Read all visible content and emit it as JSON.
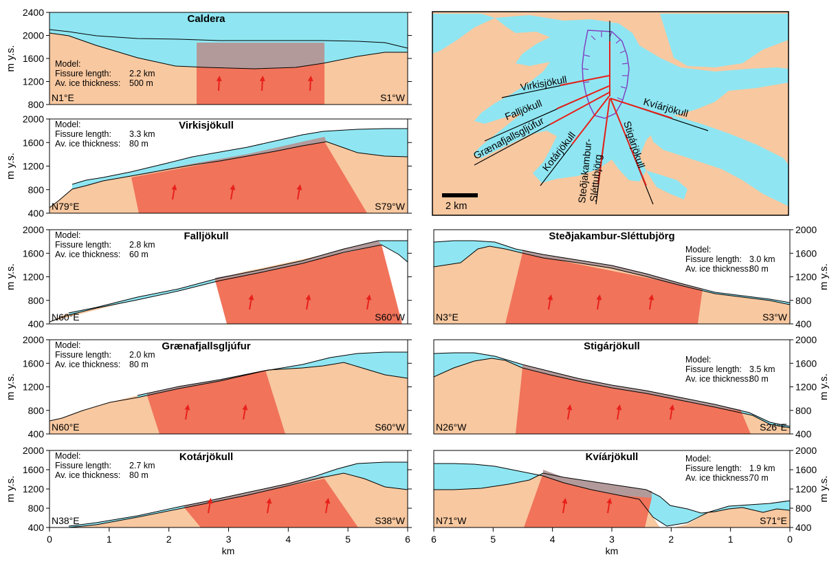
{
  "colors": {
    "ice": "#8FE6F2",
    "rock": "#F8C8A0",
    "intrusion": "#F0735A",
    "contact": "#B39A9A",
    "arrow": "#E8201A",
    "fissure_line": "#E8201A",
    "caldera_outline": "#8040C0"
  },
  "axes": {
    "y_label": "m y.s.",
    "x_label": "km",
    "x_ticks_left": [
      "0",
      "1",
      "2",
      "3",
      "4",
      "5",
      "6"
    ],
    "x_ticks_right": [
      "6",
      "5",
      "4",
      "3",
      "2",
      "1",
      "0"
    ]
  },
  "model": {
    "heading": "Model:",
    "fissure_label": "Fissure length:",
    "ice_label": "Av. ice thickness:"
  },
  "panels": [
    {
      "id": "caldera",
      "title": "Caldera",
      "left": "N1°E",
      "right": "S1°W",
      "fissure": "2.2 km",
      "ice": "500 m",
      "yticks": [
        "2400",
        "2000",
        "1600",
        "1200",
        "800"
      ]
    },
    {
      "id": "virkis",
      "title": "Virkisjökull",
      "left": "N79°E",
      "right": "S79°W",
      "fissure": "3.3 km",
      "ice": "80 m",
      "yticks": [
        "2000",
        "1600",
        "1200",
        "800",
        "400"
      ]
    },
    {
      "id": "fall",
      "title": "Falljökull",
      "left": "N60°E",
      "right": "S60°W",
      "fissure": "2.8 km",
      "ice": "60 m",
      "yticks": [
        "2000",
        "1600",
        "1200",
        "800",
        "400"
      ]
    },
    {
      "id": "graena",
      "title": "Grænafjallsgljúfur",
      "left": "N60°E",
      "right": "S60°W",
      "fissure": "2.0 km",
      "ice": "80 m",
      "yticks": [
        "2000",
        "1600",
        "1200",
        "800",
        "400"
      ]
    },
    {
      "id": "kotar",
      "title": "Kotárjökull",
      "left": "N38°E",
      "right": "S38°W",
      "fissure": "2.7 km",
      "ice": "80 m",
      "yticks": [
        "2000",
        "1600",
        "1200",
        "800",
        "400"
      ]
    },
    {
      "id": "stedja",
      "title": "Steðjakambur-Sléttubjörg",
      "left": "N3°E",
      "right": "S3°W",
      "fissure": "3.0 km",
      "ice": "80 m",
      "yticks": [
        "2000",
        "1600",
        "1200",
        "800",
        "400"
      ]
    },
    {
      "id": "stigar",
      "title": "Stigárjökull",
      "left": "N26°W",
      "right": "S26°E",
      "fissure": "3.5 km",
      "ice": "80 m",
      "yticks": [
        "2000",
        "1600",
        "1200",
        "800",
        "400"
      ]
    },
    {
      "id": "kviar",
      "title": "Kvíárjökull",
      "left": "N71°W",
      "right": "S71°E",
      "fissure": "1.9 km",
      "ice": "70 m",
      "yticks": [
        "2000",
        "1600",
        "1200",
        "800",
        "400"
      ]
    }
  ],
  "map": {
    "labels": {
      "virkis": "Virkisjökull",
      "fall": "Falljökull",
      "graena": "Grænafjallsgljúfur",
      "kotar": "Kotárjökull",
      "stedja1": "Steðjakambur-",
      "stedja2": "Sléttubjörg",
      "stigar": "Stigárjökull",
      "kviar": "Kvíárjökull"
    },
    "scale_label": "2 km"
  }
}
